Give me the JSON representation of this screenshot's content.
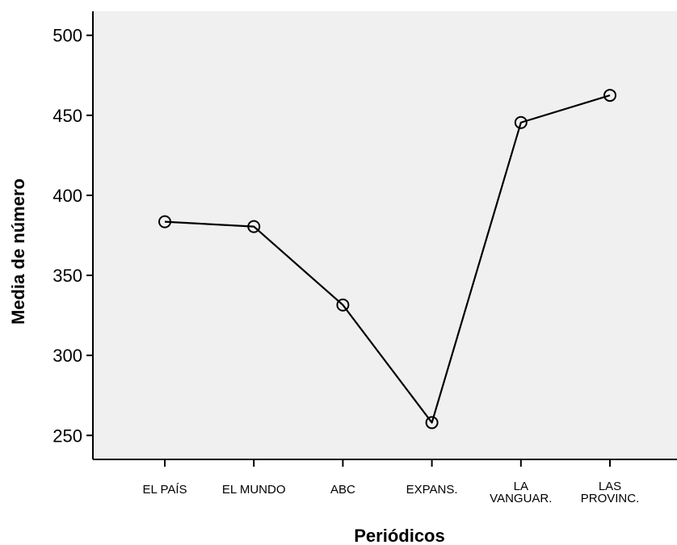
{
  "chart_data": {
    "type": "line",
    "title": "",
    "xlabel": "Periódicos",
    "ylabel": "Media de número",
    "categories": [
      [
        "EL PAÍS"
      ],
      [
        "EL MUNDO"
      ],
      [
        "ABC"
      ],
      [
        "EXPANS."
      ],
      [
        "LA",
        "VANGUAR."
      ],
      [
        "LAS",
        "PROVINC."
      ]
    ],
    "values": [
      383.5,
      380.5,
      331.5,
      258,
      445.5,
      462.5
    ],
    "ylim": [
      235,
      515
    ],
    "yticks": [
      250,
      300,
      350,
      400,
      450,
      500
    ],
    "grid": false,
    "legend": "none",
    "colors": {
      "plot_background": "#f0f0f0",
      "line": "#000000",
      "marker": "#000000"
    }
  }
}
